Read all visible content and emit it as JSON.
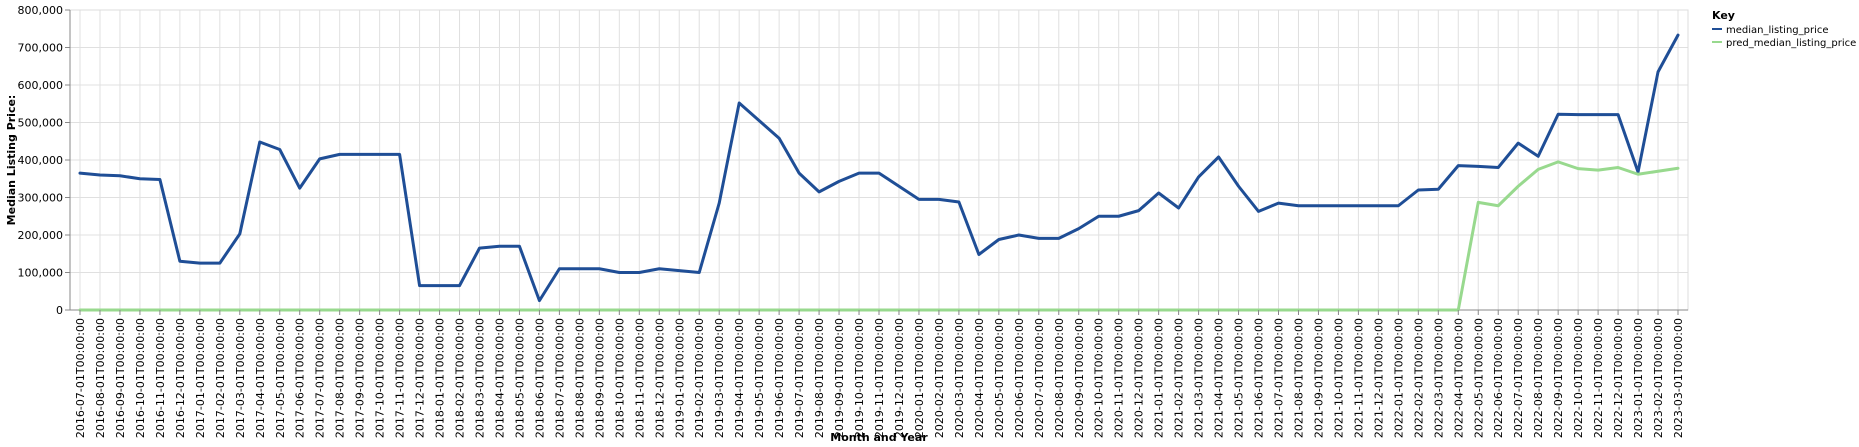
{
  "chart_data": {
    "type": "line",
    "title": "",
    "xlabel": "Month and Year",
    "ylabel": "Median Listing Price:",
    "ylim": [
      0,
      800000
    ],
    "yticks": [
      "0",
      "100,000",
      "200,000",
      "300,000",
      "400,000",
      "500,000",
      "600,000",
      "700,000",
      "800,000"
    ],
    "grid": true,
    "legend": {
      "title": "Key",
      "placement": "right"
    },
    "x": [
      "2016-07-01T00:00:00",
      "2016-08-01T00:00:00",
      "2016-09-01T00:00:00",
      "2016-10-01T00:00:00",
      "2016-11-01T00:00:00",
      "2016-12-01T00:00:00",
      "2017-01-01T00:00:00",
      "2017-02-01T00:00:00",
      "2017-03-01T00:00:00",
      "2017-04-01T00:00:00",
      "2017-05-01T00:00:00",
      "2017-06-01T00:00:00",
      "2017-07-01T00:00:00",
      "2017-08-01T00:00:00",
      "2017-09-01T00:00:00",
      "2017-10-01T00:00:00",
      "2017-11-01T00:00:00",
      "2017-12-01T00:00:00",
      "2018-01-01T00:00:00",
      "2018-02-01T00:00:00",
      "2018-03-01T00:00:00",
      "2018-04-01T00:00:00",
      "2018-05-01T00:00:00",
      "2018-06-01T00:00:00",
      "2018-07-01T00:00:00",
      "2018-08-01T00:00:00",
      "2018-09-01T00:00:00",
      "2018-10-01T00:00:00",
      "2018-11-01T00:00:00",
      "2018-12-01T00:00:00",
      "2019-01-01T00:00:00",
      "2019-02-01T00:00:00",
      "2019-03-01T00:00:00",
      "2019-04-01T00:00:00",
      "2019-05-01T00:00:00",
      "2019-06-01T00:00:00",
      "2019-07-01T00:00:00",
      "2019-08-01T00:00:00",
      "2019-09-01T00:00:00",
      "2019-10-01T00:00:00",
      "2019-11-01T00:00:00",
      "2019-12-01T00:00:00",
      "2020-01-01T00:00:00",
      "2020-02-01T00:00:00",
      "2020-03-01T00:00:00",
      "2020-04-01T00:00:00",
      "2020-05-01T00:00:00",
      "2020-06-01T00:00:00",
      "2020-07-01T00:00:00",
      "2020-08-01T00:00:00",
      "2020-09-01T00:00:00",
      "2020-10-01T00:00:00",
      "2020-11-01T00:00:00",
      "2020-12-01T00:00:00",
      "2021-01-01T00:00:00",
      "2021-02-01T00:00:00",
      "2021-03-01T00:00:00",
      "2021-04-01T00:00:00",
      "2021-05-01T00:00:00",
      "2021-06-01T00:00:00",
      "2021-07-01T00:00:00",
      "2021-08-01T00:00:00",
      "2021-09-01T00:00:00",
      "2021-10-01T00:00:00",
      "2021-11-01T00:00:00",
      "2021-12-01T00:00:00",
      "2022-01-01T00:00:00",
      "2022-02-01T00:00:00",
      "2022-03-01T00:00:00",
      "2022-04-01T00:00:00",
      "2022-05-01T00:00:00",
      "2022-06-01T00:00:00",
      "2022-07-01T00:00:00",
      "2022-08-01T00:00:00",
      "2022-09-01T00:00:00",
      "2022-10-01T00:00:00",
      "2022-11-01T00:00:00",
      "2022-12-01T00:00:00",
      "2023-01-01T00:00:00",
      "2023-02-01T00:00:00",
      "2023-03-01T00:00:00"
    ],
    "series": [
      {
        "name": "median_listing_price",
        "color": "#1f4e96",
        "values": [
          365000,
          360000,
          358000,
          350000,
          348000,
          130000,
          125000,
          125000,
          203000,
          448000,
          428000,
          325000,
          403000,
          415000,
          415000,
          415000,
          415000,
          65000,
          65000,
          65000,
          165000,
          170000,
          170000,
          25000,
          110000,
          110000,
          110000,
          100000,
          100000,
          110000,
          105000,
          100000,
          285000,
          552000,
          505000,
          458000,
          365000,
          315000,
          343000,
          365000,
          365000,
          330000,
          295000,
          295000,
          288000,
          148000,
          188000,
          200000,
          191000,
          191000,
          217000,
          250000,
          250000,
          265000,
          312000,
          272000,
          355000,
          408000,
          330000,
          263000,
          285000,
          278000,
          278000,
          278000,
          278000,
          278000,
          278000,
          320000,
          322000,
          385000,
          383000,
          380000,
          445000,
          410000,
          522000,
          521000,
          521000,
          521000,
          368000,
          635000,
          733000
        ]
      },
      {
        "name": "pred_median_listing_price",
        "color": "#98d98e",
        "values": [
          0,
          0,
          0,
          0,
          0,
          0,
          0,
          0,
          0,
          0,
          0,
          0,
          0,
          0,
          0,
          0,
          0,
          0,
          0,
          0,
          0,
          0,
          0,
          0,
          0,
          0,
          0,
          0,
          0,
          0,
          0,
          0,
          0,
          0,
          0,
          0,
          0,
          0,
          0,
          0,
          0,
          0,
          0,
          0,
          0,
          0,
          0,
          0,
          0,
          0,
          0,
          0,
          0,
          0,
          0,
          0,
          0,
          0,
          0,
          0,
          0,
          0,
          0,
          0,
          0,
          0,
          0,
          0,
          0,
          0,
          287000,
          278000,
          330000,
          375000,
          395000,
          377000,
          373000,
          380000,
          362000,
          370000,
          378000
        ]
      }
    ]
  }
}
